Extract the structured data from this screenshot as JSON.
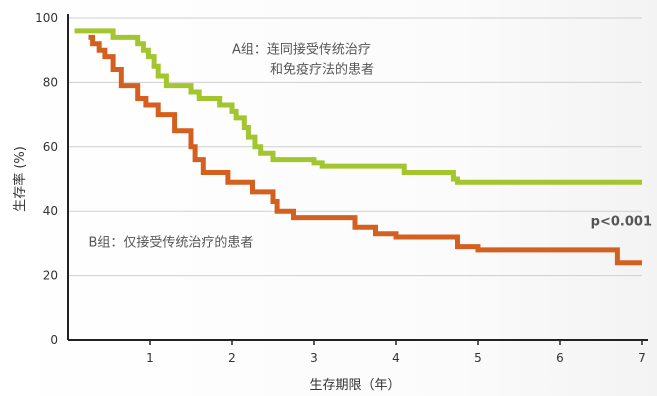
{
  "chart_data": {
    "type": "line",
    "step": true,
    "xlabel": "生存期限（年）",
    "ylabel": "生存率 (%)",
    "xlim": [
      0,
      7
    ],
    "ylim": [
      0,
      100
    ],
    "x_ticks": [
      1,
      2,
      3,
      4,
      5,
      6,
      7
    ],
    "y_ticks": [
      0,
      20,
      40,
      60,
      80,
      100
    ],
    "grid": "horizontal",
    "series": [
      {
        "color": "#a3c62e",
        "x": [
          0.08,
          0.55,
          0.85,
          0.92,
          0.98,
          1.05,
          1.1,
          1.2,
          1.3,
          1.5,
          1.6,
          1.85,
          2.0,
          2.05,
          2.15,
          2.2,
          2.28,
          2.35,
          2.5,
          2.7,
          3.0,
          3.1,
          4.1,
          4.25,
          4.7,
          4.75,
          7.0
        ],
        "y": [
          96,
          94,
          92,
          90,
          88,
          85,
          82,
          79,
          79,
          77,
          75,
          73,
          71,
          69,
          66,
          63,
          60,
          58,
          56,
          56,
          55,
          54,
          52,
          52,
          50,
          49,
          49
        ]
      },
      {
        "color": "#d4601f",
        "x": [
          0.25,
          0.3,
          0.38,
          0.45,
          0.55,
          0.65,
          0.85,
          0.95,
          1.1,
          1.3,
          1.5,
          1.55,
          1.65,
          1.95,
          2.25,
          2.5,
          2.55,
          2.75,
          3.5,
          3.75,
          4.0,
          4.7,
          4.75,
          5.0,
          6.7,
          7.0
        ],
        "y": [
          94,
          92,
          90,
          88,
          84,
          79,
          75,
          73,
          70,
          65,
          60,
          56,
          52,
          49,
          46,
          43,
          40,
          38,
          35,
          33,
          32,
          32,
          29,
          28,
          24,
          24
        ]
      }
    ],
    "annotations": [
      {
        "lines": [
          "A组：连同接受传统治疗",
          "和免疫疗法的患者"
        ],
        "at": [
          2.0,
          89
        ]
      },
      {
        "lines": [
          "B组：仅接受传统治疗的患者"
        ],
        "at": [
          0.25,
          29
        ]
      },
      {
        "lines": [
          "p<0.001"
        ],
        "at": [
          7.0,
          35.5
        ]
      }
    ]
  }
}
